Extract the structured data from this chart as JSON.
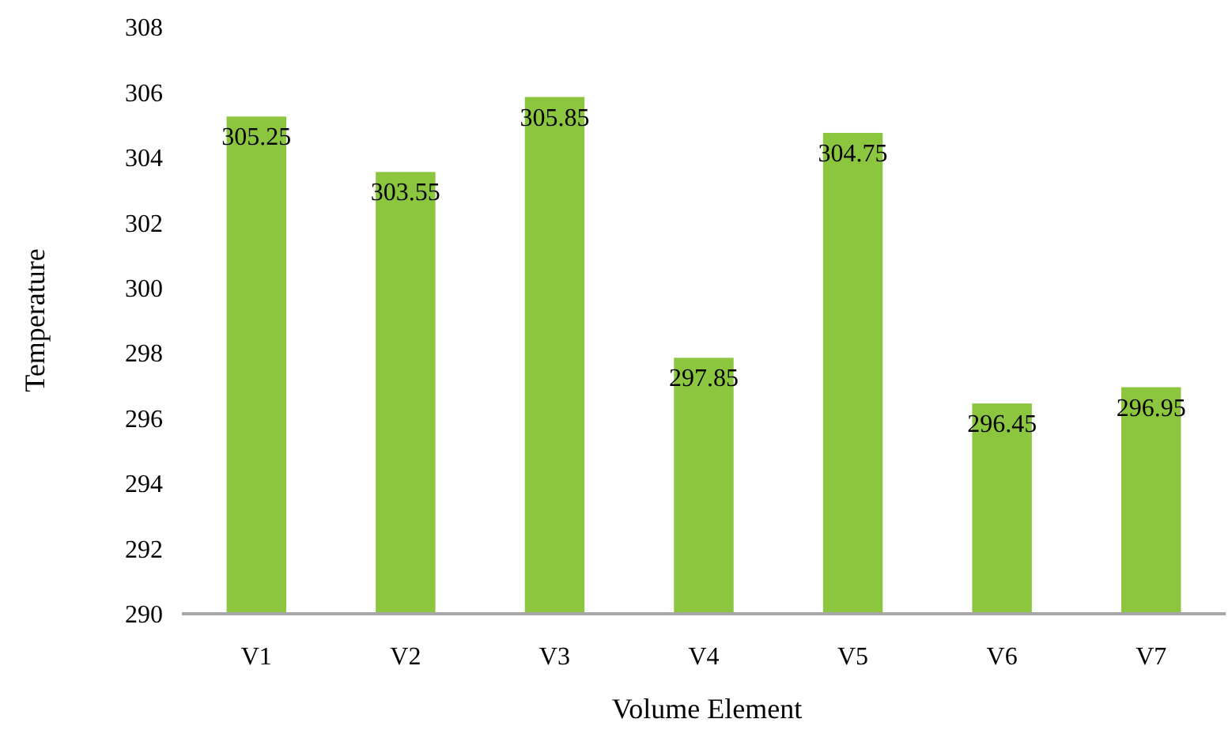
{
  "chart_data": {
    "type": "bar",
    "xlabel": "Volume Element",
    "ylabel": "Temperature",
    "categories": [
      "V1",
      "V2",
      "V3",
      "V4",
      "V5",
      "V6",
      "V7"
    ],
    "values": [
      305.25,
      303.55,
      305.85,
      297.85,
      304.75,
      296.45,
      296.95
    ],
    "color": "#8cc63f",
    "ylim": [
      290,
      308
    ],
    "yticks": [
      290,
      292,
      294,
      296,
      298,
      300,
      302,
      304,
      306,
      308
    ],
    "grid": false,
    "data_labels": true
  }
}
